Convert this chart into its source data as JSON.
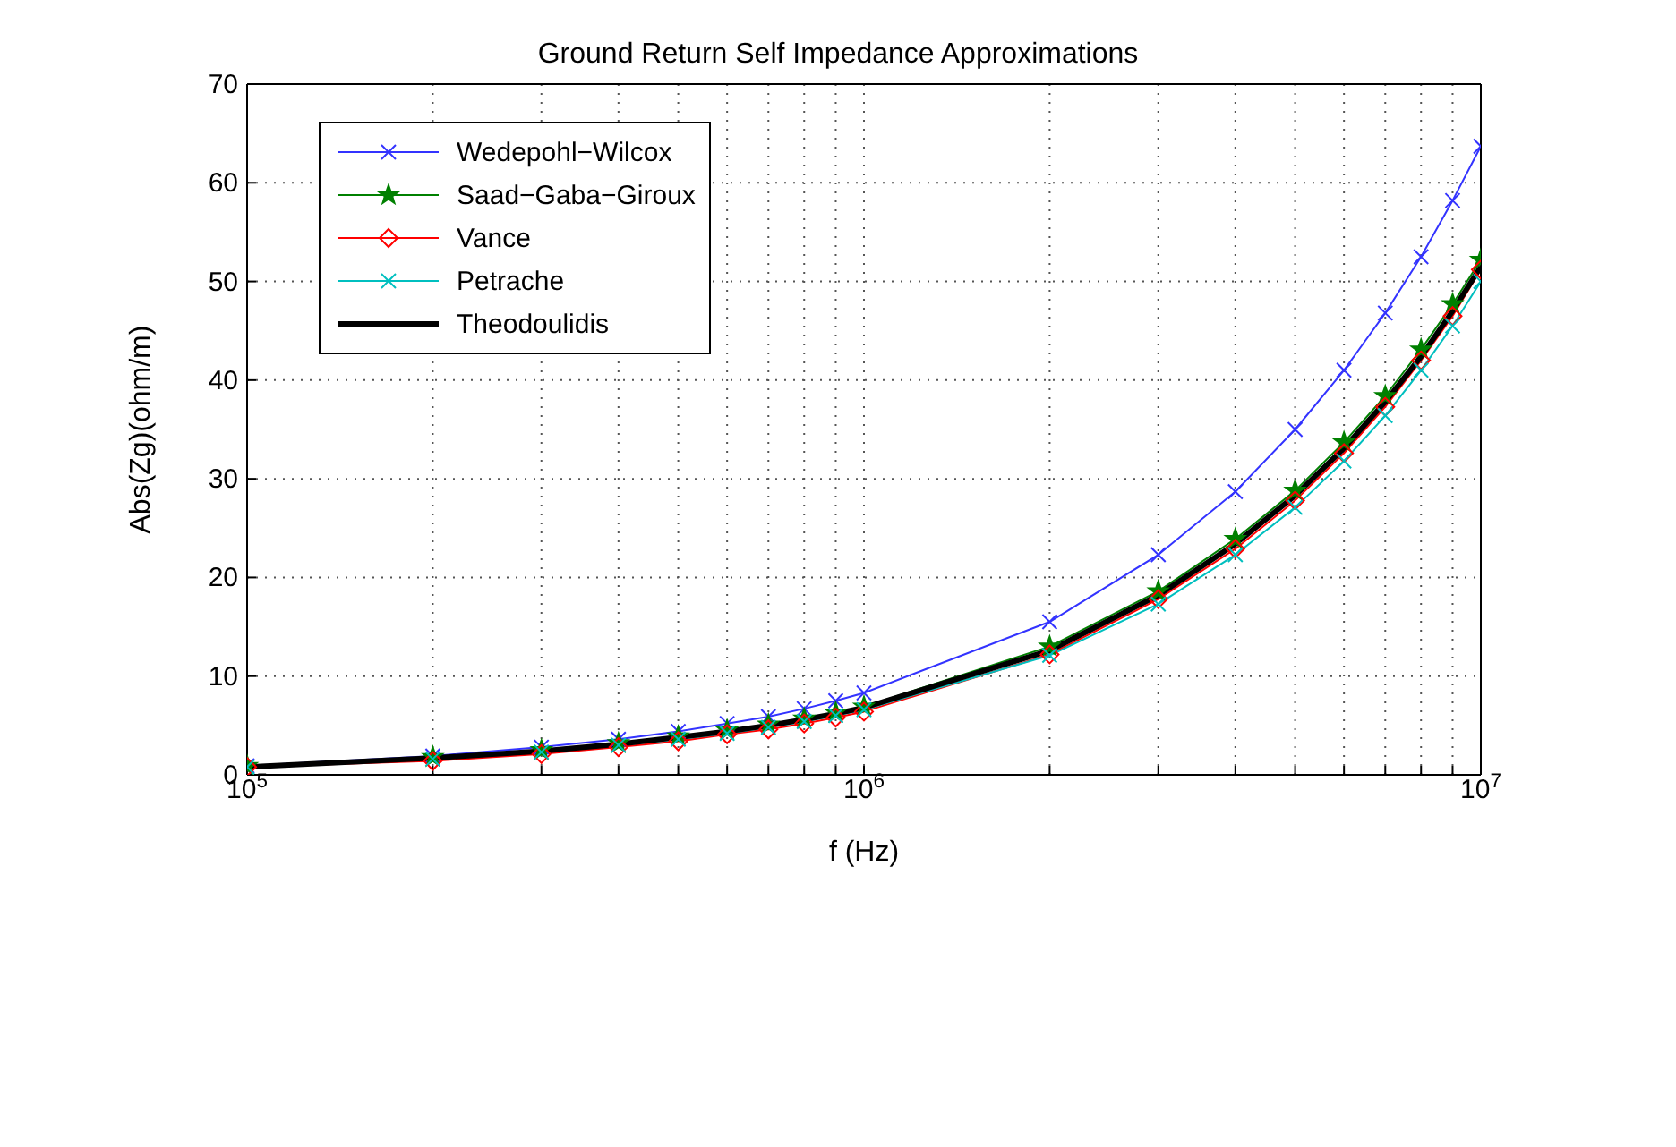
{
  "chart_data": {
    "type": "line",
    "title": "Ground Return Self Impedance Approximations",
    "xlabel": "f (Hz)",
    "ylabel": "Abs(Zg)(ohm/m)",
    "x": [
      100000,
      200000,
      300000,
      400000,
      500000,
      600000,
      700000,
      800000,
      900000,
      1000000,
      2000000,
      3000000,
      4000000,
      5000000,
      6000000,
      7000000,
      8000000,
      9000000,
      10000000
    ],
    "log": "x",
    "xlim": [
      100000,
      10000000
    ],
    "xticks": [
      {
        "value": 100000,
        "label": "10$^{5}$"
      },
      {
        "value": 200000,
        "label": null
      },
      {
        "value": 300000,
        "label": null
      },
      {
        "value": 400000,
        "label": null
      },
      {
        "value": 500000,
        "label": null
      },
      {
        "value": 600000,
        "label": null
      },
      {
        "value": 700000,
        "label": null
      },
      {
        "value": 800000,
        "label": null
      },
      {
        "value": 900000,
        "label": null
      },
      {
        "value": 1000000,
        "label": "10$^{6}$"
      },
      {
        "value": 2000000,
        "label": null
      },
      {
        "value": 3000000,
        "label": null
      },
      {
        "value": 4000000,
        "label": null
      },
      {
        "value": 5000000,
        "label": null
      },
      {
        "value": 6000000,
        "label": null
      },
      {
        "value": 7000000,
        "label": null
      },
      {
        "value": 8000000,
        "label": null
      },
      {
        "value": 9000000,
        "label": null
      },
      {
        "value": 10000000,
        "label": "10$^{7}$"
      }
    ],
    "ylim": [
      0,
      70
    ],
    "yticks": [
      0,
      10,
      20,
      30,
      40,
      50,
      60,
      70
    ],
    "grid": true,
    "legend": "top left",
    "series": [
      {
        "name": "Wedepohl−Wilcox",
        "color": "#3333ff",
        "marker": "cross",
        "values": [
          0.9,
          1.9,
          2.8,
          3.6,
          4.4,
          5.2,
          5.9,
          6.7,
          7.5,
          8.3,
          15.5,
          22.3,
          28.7,
          35,
          41,
          46.8,
          52.5,
          58.2,
          63.7
        ]
      },
      {
        "name": "Saad−Gaba−Giroux",
        "color": "#008000",
        "marker": "star",
        "values": [
          0.9,
          1.8,
          2.5,
          3.2,
          3.9,
          4.5,
          5.1,
          5.7,
          6.3,
          6.9,
          13,
          18.6,
          23.9,
          28.8,
          33.7,
          38.4,
          43.1,
          47.7,
          52.2
        ]
      },
      {
        "name": "Vance",
        "color": "#ff0000",
        "marker": "diamond",
        "values": [
          0.8,
          1.4,
          2.1,
          2.8,
          3.4,
          4.1,
          4.6,
          5.2,
          5.8,
          6.4,
          12.2,
          17.8,
          22.9,
          27.8,
          32.6,
          37.3,
          42,
          46.5,
          51.2
        ]
      },
      {
        "name": "Petrache",
        "color": "#00bfbf",
        "marker": "cross",
        "values": [
          0.8,
          1.6,
          2.3,
          3,
          3.6,
          4.2,
          4.8,
          5.4,
          6,
          6.6,
          12.1,
          17.3,
          22.3,
          27.1,
          31.8,
          36.4,
          41,
          45.5,
          50
        ]
      },
      {
        "name": "Theodoulidis",
        "color": "#000000",
        "marker": "none",
        "values": [
          0.8,
          1.7,
          2.4,
          3.1,
          3.8,
          4.4,
          5,
          5.6,
          6.2,
          6.8,
          12.6,
          18.2,
          23.4,
          28.3,
          33.1,
          37.8,
          42.4,
          47,
          51.5
        ]
      }
    ]
  }
}
